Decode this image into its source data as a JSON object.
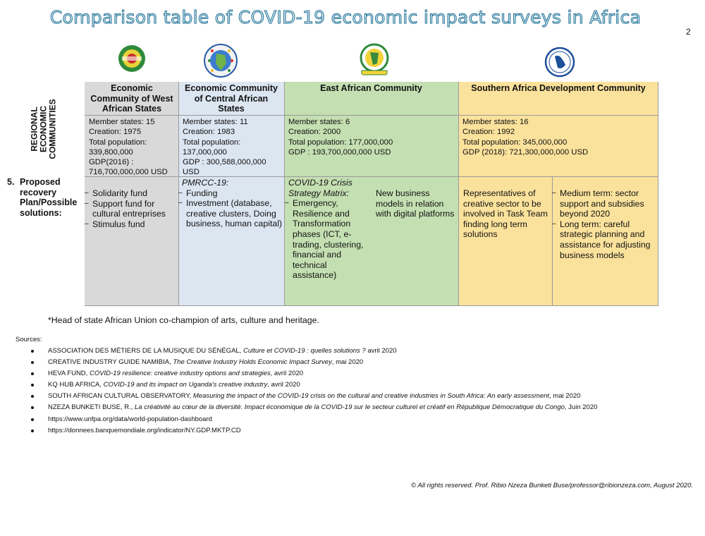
{
  "title": "Comparison table of COVID-19 economic impact surveys in Africa",
  "page_number": "2",
  "row_label_1": "REGIONAL ECONOMIC COMMUNITIES",
  "row_label_1_lines": [
    "REGIONAL",
    "ECONOMIC",
    "COMMUNITIES"
  ],
  "row_label_2": {
    "number": "5.",
    "text": "Proposed recovery Plan/Possible solutions:"
  },
  "logos": [
    {
      "name": "ecowas-logo",
      "icon": "ecowas-emblem"
    },
    {
      "name": "eccas-logo",
      "icon": "eccas-emblem"
    },
    {
      "name": "eac-logo",
      "icon": "eac-emblem"
    },
    {
      "name": "sadc-logo",
      "icon": "sadc-emblem"
    }
  ],
  "colors": {
    "ecowas": "#d9d9d9",
    "eccas": "#dce6f1",
    "eac": "#c4dfb2",
    "sadc": "#fbe29c",
    "title_fill": "#d7ecf5",
    "title_outline": "#1f6f93"
  },
  "communities": {
    "ecowas": {
      "header": "Economic Community of West African States",
      "info": [
        "Member states: 15",
        "Creation: 1975",
        "Total population: 339,800,000",
        "GDP(2016) : 716,700,000,000 USD"
      ],
      "solutions": [
        "Solidarity fund",
        "Support fund for cultural entreprises",
        "Stimulus fund"
      ]
    },
    "eccas": {
      "header": "Economic Community of Central African States",
      "info": [
        "Member states: 11",
        "Creation: 1983",
        "Total population: 137,000,000",
        "GDP : 300,588,000,000 USD"
      ],
      "plan_title": "PMRCC-19:",
      "solutions": [
        "Funding",
        "Investment (database, creative clusters, Doing business, human capital)"
      ]
    },
    "eac": {
      "header": "East African Community",
      "info": [
        "Member states: 6",
        "Creation: 2000",
        "Total population: 177,000,000",
        "GDP : 193,700,000,000 USD"
      ],
      "plan_title": "COVID-19 Crisis Strategy Matrix:",
      "solutions": [
        "Emergency, Resilience and Transformation phases (ICT, e-trading, clustering, financial and technical assistance)"
      ],
      "extra": "New business models in relation with digital platforms"
    },
    "sadc": {
      "header": "Southern Africa Development Community",
      "info": [
        "Member states: 16",
        "Creation: 1992",
        "Total population: 345,000,000",
        "GDP (2018): 721,300,000,000 USD"
      ],
      "left_text": "Representatives of creative sector to be involved in Task Team finding long term solutions",
      "solutions": [
        "Medium term: sector support and subsidies beyond 2020",
        "Long term: careful strategic planning and assistance for adjusting business models"
      ]
    }
  },
  "footnote": "*Head of state African Union co-champion of arts, culture and heritage.",
  "sources_label": "Sources:",
  "sources": [
    {
      "author": "ASSOCIATION DES MÉTIERS DE LA MUSIQUE DU SÉNÉGAL, ",
      "title": "Culture et COVID-19 :  quelles solutions ?",
      "date": " avril 2020"
    },
    {
      "author": "CREATIVE INDUSTRY GUIDE NAMIBIA, ",
      "title": "The Creative Industry Holds Economic Impact Survey",
      "date": ", mai 2020"
    },
    {
      "author": "HEVA FUND, ",
      "title": "COVID-19 resilience: creative industry options and strategies",
      "date": ", avril 2020"
    },
    {
      "author": "KQ HUB AFRICA, ",
      "title": "COVID-19 and its impact on Uganda's creative industry",
      "date": ", avril 2020"
    },
    {
      "author": "SOUTH AFRICAN CULTURAL OBSERVATORY, ",
      "title": "Measuring the impact of the COVID-19 crisis on the cultural and creative industries in South Africa: An early assessment",
      "date": ", mai 2020"
    },
    {
      "author": "NZEZA BUNKETI BUSE, R., ",
      "title": "La créativité au cœur de la diversité. Impact économique de la COVID-19 sur le secteur culturel et créatif en République Démocratique du Congo",
      "date": ", Juin 2020"
    },
    {
      "author": "https://www.unfpa.org/data/world-population-dashboard",
      "title": "",
      "date": ""
    },
    {
      "author": "https://donnees.banquemondiale.org/indicator/NY.GDP.MKTP.CD",
      "title": "",
      "date": ""
    }
  ],
  "copyright": "© All rights reserved. Prof. Ribio Nzeza Bunketi Buse/professor@ribionzeza.com, August 2020."
}
